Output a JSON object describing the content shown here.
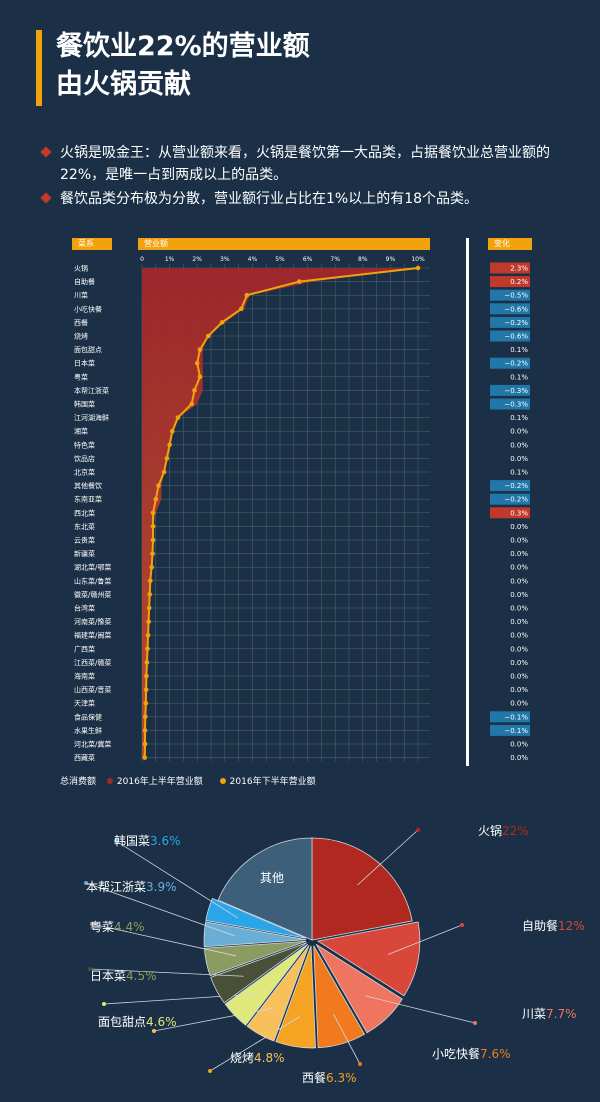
{
  "title": {
    "line1": "餐饮业22%的营业额",
    "line2": "由火锅贡献"
  },
  "bullets": [
    "火锅是吸金王：从营业额来看，火锅是餐饮第一大品类，占据餐饮业总营业额的22%，是唯一占到两成以上的品类。",
    "餐饮品类分布极为分散，营业额行业占比在1%以上的有18个品类。"
  ],
  "headers": {
    "category": "菜系",
    "revenue": "营业额",
    "change": "变化"
  },
  "colors": {
    "h1_fill": "#a3262a",
    "h2_line": "#f2a20c",
    "grid": "#4d6a6a",
    "positive": "#c0392b",
    "negative": "#2177a8"
  },
  "chart_data": [
    {
      "type": "area",
      "categories": [
        "火锅",
        "自助餐",
        "川菜",
        "小吃快餐",
        "西餐",
        "烧烤",
        "面包甜点",
        "日本菜",
        "粤菜",
        "本帮江浙菜",
        "韩国菜",
        "江河湖海鲜",
        "湘菜",
        "特色菜",
        "饮品店",
        "北京菜",
        "其他餐饮",
        "东南亚菜",
        "西北菜",
        "东北菜",
        "云贵菜",
        "新疆菜",
        "湖北菜/鄂菜",
        "山东菜/鲁菜",
        "徽菜/赣州菜",
        "台湾菜",
        "河南菜/豫菜",
        "福建菜/闽菜",
        "广西菜",
        "江西菜/赣菜",
        "海南菜",
        "山西菜/晋菜",
        "天津菜",
        "食品保健",
        "水果生鲜",
        "河北菜/冀菜",
        "西藏菜"
      ],
      "x_ticks": [
        "0",
        "1%",
        "2%",
        "3%",
        "4%",
        "5%",
        "6%",
        "7%",
        "8%",
        "9%",
        "10%"
      ],
      "xlim": [
        0,
        10
      ],
      "series": [
        {
          "name": "2016年上半年营业额",
          "values": [
            9.8,
            6.2,
            3.9,
            3.7,
            3.0,
            2.4,
            2.2,
            2.2,
            2.2,
            2.2,
            2.0,
            1.3,
            1.1,
            1.0,
            0.9,
            0.8,
            0.7,
            0.7,
            0.5,
            0.4,
            0.4,
            0.38,
            0.35,
            0.3,
            0.28,
            0.26,
            0.24,
            0.22,
            0.2,
            0.18,
            0.16,
            0.15,
            0.14,
            0.13,
            0.12,
            0.11,
            0.1
          ]
        },
        {
          "name": "2016年下半年营业额",
          "values": [
            10.0,
            5.7,
            3.8,
            3.6,
            2.9,
            2.4,
            2.1,
            2.0,
            2.1,
            1.9,
            1.8,
            1.3,
            1.1,
            1.0,
            0.9,
            0.8,
            0.6,
            0.5,
            0.4,
            0.4,
            0.4,
            0.38,
            0.35,
            0.3,
            0.28,
            0.26,
            0.24,
            0.22,
            0.2,
            0.18,
            0.16,
            0.15,
            0.14,
            0.12,
            0.11,
            0.11,
            0.1
          ]
        }
      ],
      "changes": [
        "2.3%",
        "0.2%",
        "−0.5%",
        "−0.6%",
        "−0.2%",
        "−0.6%",
        "0.1%",
        "−0.2%",
        "0.1%",
        "−0.3%",
        "−0.3%",
        "0.1%",
        "0.0%",
        "0.0%",
        "0.0%",
        "0.1%",
        "−0.2%",
        "−0.2%",
        "0.3%",
        "0.0%",
        "0.0%",
        "0.0%",
        "0.0%",
        "0.0%",
        "0.0%",
        "0.0%",
        "0.0%",
        "0.0%",
        "0.0%",
        "0.0%",
        "0.0%",
        "0.0%",
        "0.0%",
        "−0.1%",
        "−0.1%",
        "0.0%",
        "0.0%"
      ],
      "legend_label": "总消费额",
      "legend_position": "bottom-left",
      "grid": true
    },
    {
      "type": "pie",
      "slices": [
        {
          "label": "火锅",
          "value": 22,
          "pct": "22%",
          "color": "#b0281f"
        },
        {
          "label": "自助餐",
          "value": 12,
          "pct": "12%",
          "color": "#d9473a"
        },
        {
          "label": "川菜",
          "value": 7.7,
          "pct": "7.7%",
          "color": "#f07560"
        },
        {
          "label": "小吃快餐",
          "value": 7.6,
          "pct": "7.6%",
          "color": "#f07a1d"
        },
        {
          "label": "西餐",
          "value": 6.3,
          "pct": "6.3%",
          "color": "#f5a323"
        },
        {
          "label": "烧烤",
          "value": 4.8,
          "pct": "4.8%",
          "color": "#f8c05a"
        },
        {
          "label": "面包甜点",
          "value": 4.6,
          "pct": "4.6%",
          "color": "#dfe87a"
        },
        {
          "label": "日本菜",
          "value": 4.5,
          "pct": "4.5%",
          "color": "#4a5037"
        },
        {
          "label": "粤菜",
          "value": 4.4,
          "pct": "4.4%",
          "color": "#8c9b62"
        },
        {
          "label": "本帮江浙菜",
          "value": 3.9,
          "pct": "3.9%",
          "color": "#6aaed6"
        },
        {
          "label": "韩国菜",
          "value": 3.6,
          "pct": "3.6%",
          "color": "#2aa5e8"
        },
        {
          "label": "其他",
          "value": 18.6,
          "pct": "",
          "color": "#3d5f79"
        }
      ],
      "label_colors": {
        "name": "#ffffff",
        "pct_default": "#f2a20c"
      }
    }
  ]
}
